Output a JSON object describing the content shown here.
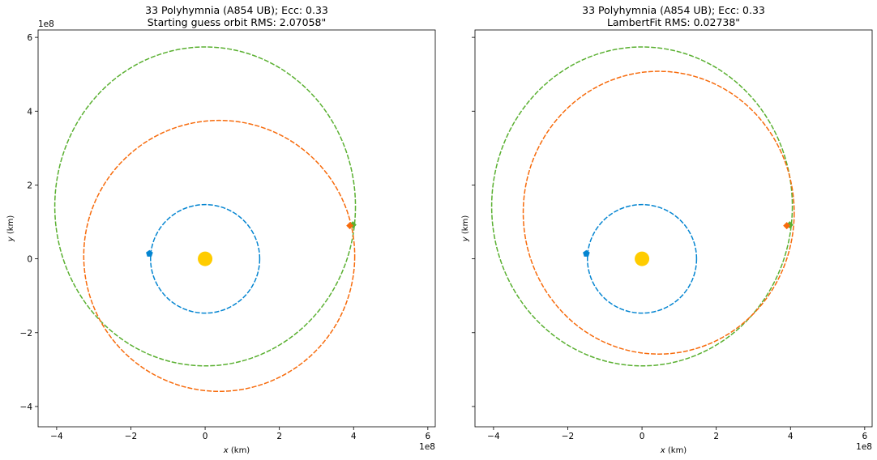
{
  "chart_data": [
    {
      "type": "line",
      "title_line1": "33 Polyhymnia (A854 UB); Ecc: 0.33",
      "title_line2": "Starting guess orbit RMS: 2.07058\"",
      "xlabel_var": "x",
      "xlabel_unit": "(km)",
      "ylabel_var": "y",
      "ylabel_unit": "(km)",
      "x_offset_label": "1e8",
      "y_offset_label": "1e8",
      "xlim": [
        -4.5,
        6.2
      ],
      "ylim": [
        -4.55,
        6.2
      ],
      "xticks": [
        -4,
        -2,
        0,
        2,
        4,
        6
      ],
      "yticks": [
        -4,
        -2,
        0,
        2,
        4,
        6
      ],
      "xtick_labels": [
        "−4",
        "−2",
        "0",
        "2",
        "4",
        "6"
      ],
      "ytick_labels": [
        "−4",
        "−2",
        "0",
        "2",
        "4",
        "6"
      ],
      "show_ytick_labels": true,
      "sun": {
        "x": 0,
        "y": 0,
        "color": "#ffcc00"
      },
      "orbits": [
        {
          "cx": 0,
          "cy": 0,
          "rx": 1.47,
          "ry": 1.47,
          "color": "#0485d1"
        },
        {
          "cx": 0,
          "cy": 1.42,
          "rx": 4.05,
          "ry": 4.32,
          "color": "#5ab031"
        },
        {
          "cx": 0.38,
          "cy": 0.08,
          "rx": 3.65,
          "ry": 3.67,
          "color": "#f76b0c"
        }
      ],
      "markers": [
        {
          "x": -1.5,
          "y": 0.14,
          "color": "#0485d1",
          "shape": "pentagon"
        },
        {
          "x": 3.98,
          "y": 0.92,
          "color": "#5ab031",
          "shape": "diamond"
        },
        {
          "x": 3.9,
          "y": 0.9,
          "color": "#f76b0c",
          "shape": "diamond"
        }
      ]
    },
    {
      "type": "line",
      "title_line1": "33 Polyhymnia (A854 UB); Ecc: 0.33",
      "title_line2": "LambertFit RMS: 0.02738\"",
      "xlabel_var": "x",
      "xlabel_unit": "(km)",
      "ylabel_var": "y",
      "ylabel_unit": "(km)",
      "x_offset_label": "1e8",
      "y_offset_label": "",
      "xlim": [
        -4.5,
        6.2
      ],
      "ylim": [
        -4.55,
        6.2
      ],
      "xticks": [
        -4,
        -2,
        0,
        2,
        4,
        6
      ],
      "yticks": [
        -4,
        -2,
        0,
        2,
        4,
        6
      ],
      "xtick_labels": [
        "−4",
        "−2",
        "0",
        "2",
        "4",
        "6"
      ],
      "ytick_labels": [],
      "show_ytick_labels": false,
      "sun": {
        "x": 0,
        "y": 0,
        "color": "#ffcc00"
      },
      "orbits": [
        {
          "cx": 0,
          "cy": 0,
          "rx": 1.47,
          "ry": 1.47,
          "color": "#0485d1"
        },
        {
          "cx": 0,
          "cy": 1.42,
          "rx": 4.05,
          "ry": 4.32,
          "color": "#5ab031"
        },
        {
          "cx": 0.45,
          "cy": 1.25,
          "rx": 3.65,
          "ry": 3.83,
          "color": "#f76b0c"
        }
      ],
      "markers": [
        {
          "x": -1.5,
          "y": 0.14,
          "color": "#0485d1",
          "shape": "pentagon"
        },
        {
          "x": 3.98,
          "y": 0.92,
          "color": "#5ab031",
          "shape": "diamond"
        },
        {
          "x": 3.9,
          "y": 0.9,
          "color": "#f76b0c",
          "shape": "diamond"
        }
      ]
    }
  ]
}
